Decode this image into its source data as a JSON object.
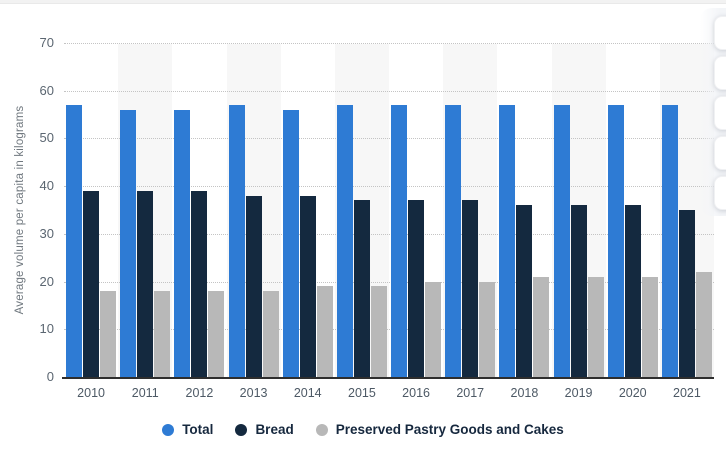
{
  "chart_data": {
    "type": "bar",
    "title": "",
    "categories": [
      "2010",
      "2011",
      "2012",
      "2013",
      "2014",
      "2015",
      "2016",
      "2017",
      "2018",
      "2019",
      "2020",
      "2021"
    ],
    "series": [
      {
        "name": "Total",
        "color": "#2e7bd4",
        "values": [
          57,
          56,
          56,
          57,
          56,
          57,
          57,
          57,
          57,
          57,
          57,
          57
        ]
      },
      {
        "name": "Bread",
        "color": "#14293f",
        "values": [
          39,
          39,
          39,
          38,
          38,
          37,
          37,
          37,
          36,
          36,
          36,
          35
        ]
      },
      {
        "name": "Preserved Pastry Goods and Cakes",
        "color": "#b8b8b8",
        "values": [
          18,
          18,
          18,
          18,
          19,
          19,
          20,
          20,
          21,
          21,
          21,
          22
        ]
      }
    ],
    "xlabel": "",
    "ylabel": "Average volume per capita in kilograms",
    "ylim": [
      0,
      70
    ],
    "ytick_step": 10,
    "yticks": [
      "0",
      "10",
      "20",
      "30",
      "40",
      "50",
      "60",
      "70"
    ],
    "grid": "horizontal-dotted",
    "legend_position": "bottom",
    "plot_band_alt_fill": "#f7f7f7"
  },
  "colors": {
    "grid": "#c4c4c4",
    "axis_line": "#2e2e2e",
    "tick_text": "#5b6671",
    "legend_text": "#16283e"
  },
  "side_toolbar": {
    "button_count": 5
  }
}
